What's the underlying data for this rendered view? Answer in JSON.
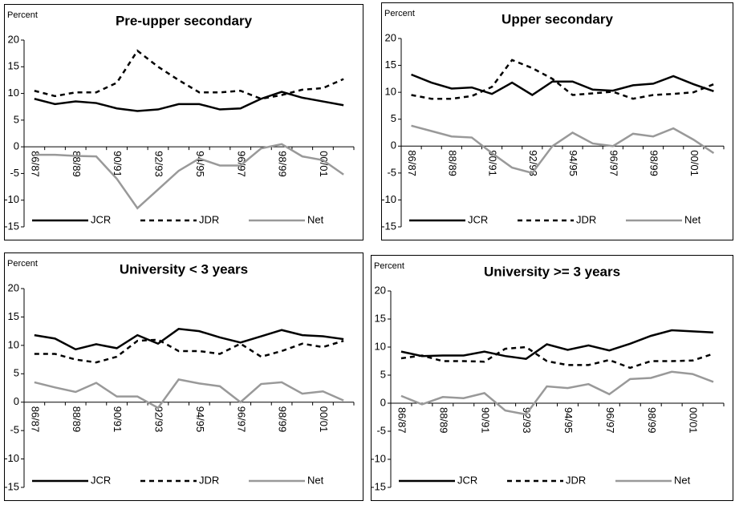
{
  "chart_data": [
    {
      "type": "line",
      "title": "Pre-upper secondary",
      "y_label": "Percent",
      "categories": [
        "86/87",
        null,
        "88/89",
        null,
        "90/91",
        null,
        "92/93",
        null,
        "94/95",
        null,
        "96/97",
        null,
        "98/99",
        null,
        "00/01",
        null
      ],
      "series": [
        {
          "name": "JCR",
          "color": "#000000",
          "style": "solid",
          "values": [
            9,
            8,
            8.5,
            8.2,
            7.2,
            6.7,
            7,
            8,
            8,
            7,
            7.2,
            9,
            10.3,
            9.2,
            8.5,
            7.8
          ]
        },
        {
          "name": "JDR",
          "color": "#000000",
          "style": "dashed",
          "values": [
            10.5,
            9.5,
            10.2,
            10.2,
            12,
            18,
            15,
            12.5,
            10.2,
            10.2,
            10.5,
            9,
            9.7,
            10.7,
            11,
            12.7
          ]
        },
        {
          "name": "Net",
          "color": "#999999",
          "style": "solid",
          "values": [
            -1.5,
            -1.5,
            -1.7,
            -1.8,
            -6,
            -11.5,
            -8,
            -4.5,
            -2.2,
            -3.5,
            -3.5,
            -0.3,
            0.5,
            -1.8,
            -2.5,
            -5.2
          ]
        }
      ],
      "ylim": [
        -15,
        20
      ],
      "yticks": [
        -15,
        -10,
        -5,
        0,
        5,
        10,
        15,
        20
      ]
    },
    {
      "type": "line",
      "title": "Upper secondary",
      "y_label": "Percent",
      "categories": [
        "86/87",
        null,
        "88/89",
        null,
        "90/91",
        null,
        "92/93",
        null,
        "94/95",
        null,
        "96/97",
        null,
        "98/99",
        null,
        "00/01",
        null
      ],
      "series": [
        {
          "name": "JCR",
          "color": "#000000",
          "style": "solid",
          "values": [
            13.3,
            11.8,
            10.7,
            10.9,
            9.7,
            11.8,
            9.5,
            12,
            12,
            10.5,
            10.3,
            11.3,
            11.6,
            13,
            11.5,
            10.2
          ]
        },
        {
          "name": "JDR",
          "color": "#000000",
          "style": "dashed",
          "values": [
            9.5,
            8.8,
            8.8,
            9.3,
            11,
            16,
            14.5,
            12.5,
            9.5,
            9.8,
            10.1,
            8.8,
            9.5,
            9.7,
            10,
            11.5
          ]
        },
        {
          "name": "Net",
          "color": "#999999",
          "style": "solid",
          "values": [
            3.8,
            2.8,
            1.8,
            1.6,
            -1.3,
            -4,
            -5,
            0,
            2.5,
            0.5,
            0,
            2.3,
            1.8,
            3.3,
            1.2,
            -1.3
          ]
        }
      ],
      "ylim": [
        -15,
        20
      ],
      "yticks": [
        -15,
        -10,
        -5,
        0,
        5,
        10,
        15,
        20
      ]
    },
    {
      "type": "line",
      "title": "University < 3 years",
      "y_label": "Percent",
      "categories": [
        "86/87",
        null,
        "88/89",
        null,
        "90/91",
        null,
        "92/93",
        null,
        "94/95",
        null,
        "96/97",
        null,
        "98/99",
        null,
        "00/01",
        null
      ],
      "series": [
        {
          "name": "JCR",
          "color": "#000000",
          "style": "solid",
          "values": [
            11.8,
            11.2,
            9.3,
            10.2,
            9.5,
            11.8,
            10.3,
            12.9,
            12.5,
            11.4,
            10.5,
            11.6,
            12.7,
            11.8,
            11.6,
            11.1
          ]
        },
        {
          "name": "JDR",
          "color": "#000000",
          "style": "dashed",
          "values": [
            8.5,
            8.5,
            7.5,
            7,
            8,
            10.8,
            11,
            9,
            9,
            8.5,
            10.3,
            8,
            9,
            10.3,
            9.7,
            10.8
          ]
        },
        {
          "name": "Net",
          "color": "#999999",
          "style": "solid",
          "values": [
            3.5,
            2.6,
            1.8,
            3.4,
            1,
            1,
            -1,
            4,
            3.3,
            2.8,
            0,
            3.2,
            3.5,
            1.5,
            1.9,
            0.3
          ]
        }
      ],
      "ylim": [
        -15,
        20
      ],
      "yticks": [
        -15,
        -10,
        -5,
        0,
        5,
        10,
        15,
        20
      ]
    },
    {
      "type": "line",
      "title": "University >= 3 years",
      "y_label": "Percent",
      "categories": [
        "86/87",
        null,
        "88/89",
        null,
        "90/91",
        null,
        "92/93",
        null,
        "94/95",
        null,
        "96/97",
        null,
        "98/99",
        null,
        "00/01",
        null
      ],
      "series": [
        {
          "name": "JCR",
          "color": "#000000",
          "style": "solid",
          "values": [
            9.2,
            8.4,
            8.5,
            8.5,
            9.2,
            8.4,
            7.9,
            10.5,
            9.5,
            10.3,
            9.4,
            10.6,
            12,
            13,
            12.8,
            12.6
          ]
        },
        {
          "name": "JDR",
          "color": "#000000",
          "style": "dashed",
          "values": [
            8,
            8.5,
            7.5,
            7.5,
            7.4,
            9.7,
            10,
            7.5,
            6.8,
            6.8,
            7.7,
            6.3,
            7.5,
            7.5,
            7.6,
            8.8
          ]
        },
        {
          "name": "Net",
          "color": "#999999",
          "style": "solid",
          "values": [
            1.3,
            -0.2,
            1.1,
            0.9,
            1.8,
            -1.3,
            -2,
            3,
            2.7,
            3.4,
            1.6,
            4.3,
            4.5,
            5.6,
            5.2,
            3.8
          ]
        }
      ],
      "ylim": [
        -15,
        20
      ],
      "yticks": [
        -15,
        -10,
        -5,
        0,
        5,
        10,
        15,
        20
      ]
    }
  ]
}
